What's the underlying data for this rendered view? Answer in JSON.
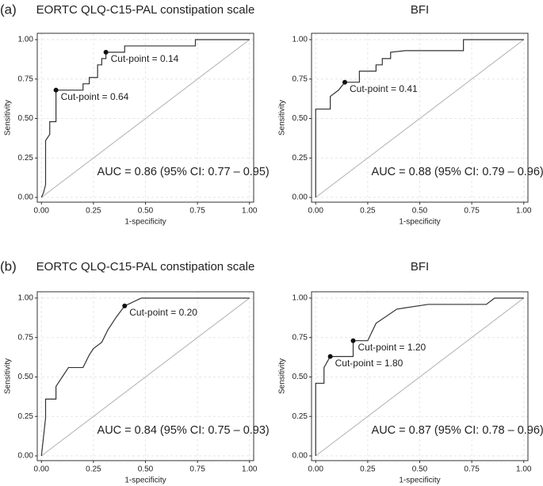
{
  "panel_labels": [
    "(a)",
    "(b)"
  ],
  "chart_data": [
    {
      "type": "line",
      "title": "EORTC QLQ-C15-PAL constipation scale",
      "x_label": "1-specificity",
      "y_label": "Sensitivity",
      "x": [
        0,
        0.01,
        0.02,
        0.02,
        0.04,
        0.04,
        0.07,
        0.07,
        0.2,
        0.2,
        0.23,
        0.23,
        0.27,
        0.27,
        0.29,
        0.29,
        0.31,
        0.31,
        0.4,
        0.4,
        0.74,
        0.74,
        1.0
      ],
      "series": [
        {
          "color": "#333333",
          "values": [
            0,
            0.03,
            0.08,
            0.36,
            0.4,
            0.48,
            0.48,
            0.68,
            0.68,
            0.72,
            0.72,
            0.76,
            0.76,
            0.84,
            0.84,
            0.88,
            0.88,
            0.92,
            0.92,
            0.96,
            0.96,
            1.0,
            1.0
          ]
        }
      ],
      "cut_points": [
        {
          "x": 0.07,
          "y": 0.68,
          "label": "Cut-point = 0.64"
        },
        {
          "x": 0.31,
          "y": 0.92,
          "label": "Cut-point = 0.14"
        }
      ],
      "annotation": "AUC = 0.86 (95% CI: 0.77 – 0.95)",
      "diagonal_color": "#b0b0b0",
      "grid": true,
      "xlim": [
        -0.02,
        1.02
      ],
      "ylim": [
        -0.03,
        1.04
      ],
      "xticks": [
        {
          "value": 0,
          "label": "0.00"
        },
        {
          "value": 0.25,
          "label": "0.25"
        },
        {
          "value": 0.5,
          "label": "0.50"
        },
        {
          "value": 0.75,
          "label": "0.75"
        },
        {
          "value": 1,
          "label": "1.00"
        }
      ],
      "yticks": [
        {
          "value": 0,
          "label": "0.00"
        },
        {
          "value": 0.25,
          "label": "0.25"
        },
        {
          "value": 0.5,
          "label": "0.50"
        },
        {
          "value": 0.75,
          "label": "0.75"
        },
        {
          "value": 1,
          "label": "1.00"
        }
      ]
    },
    {
      "type": "line",
      "title": "BFI",
      "x_label": "1-specificity",
      "y_label": "Sensitivity",
      "x": [
        0,
        0,
        0.07,
        0.07,
        0.11,
        0.14,
        0.21,
        0.21,
        0.29,
        0.29,
        0.32,
        0.32,
        0.36,
        0.36,
        0.43,
        0.71,
        0.71,
        1.0
      ],
      "series": [
        {
          "color": "#333333",
          "values": [
            0,
            0.56,
            0.56,
            0.64,
            0.68,
            0.73,
            0.73,
            0.8,
            0.8,
            0.84,
            0.84,
            0.88,
            0.88,
            0.92,
            0.93,
            0.93,
            1.0,
            1.0
          ]
        }
      ],
      "cut_points": [
        {
          "x": 0.14,
          "y": 0.73,
          "label": "Cut-point = 0.41"
        }
      ],
      "annotation": "AUC = 0.88 (95% CI: 0.79 – 0.96)",
      "diagonal_color": "#b0b0b0",
      "grid": true,
      "xlim": [
        -0.02,
        1.02
      ],
      "ylim": [
        -0.03,
        1.04
      ],
      "xticks": [
        {
          "value": 0,
          "label": "0.00"
        },
        {
          "value": 0.25,
          "label": "0.25"
        },
        {
          "value": 0.5,
          "label": "0.50"
        },
        {
          "value": 0.75,
          "label": "0.75"
        },
        {
          "value": 1,
          "label": "1.00"
        }
      ],
      "yticks": [
        {
          "value": 0,
          "label": "0.00"
        },
        {
          "value": 0.25,
          "label": "0.25"
        },
        {
          "value": 0.5,
          "label": "0.50"
        },
        {
          "value": 0.75,
          "label": "0.75"
        },
        {
          "value": 1,
          "label": "1.00"
        }
      ]
    },
    {
      "type": "line",
      "title": "EORTC QLQ-C15-PAL constipation scale",
      "x_label": "1-specificity",
      "y_label": "Sensitivity",
      "x": [
        0,
        0.01,
        0.02,
        0.02,
        0.07,
        0.07,
        0.09,
        0.11,
        0.13,
        0.2,
        0.23,
        0.25,
        0.29,
        0.32,
        0.36,
        0.4,
        0.48,
        1.0
      ],
      "series": [
        {
          "color": "#333333",
          "values": [
            0,
            0.12,
            0.24,
            0.36,
            0.36,
            0.44,
            0.48,
            0.52,
            0.56,
            0.56,
            0.64,
            0.68,
            0.72,
            0.8,
            0.88,
            0.95,
            1.0,
            1.0
          ]
        }
      ],
      "cut_points": [
        {
          "x": 0.4,
          "y": 0.95,
          "label": "Cut-point = 0.20"
        }
      ],
      "annotation": "AUC = 0.84 (95% CI: 0.75 – 0.93)",
      "diagonal_color": "#b0b0b0",
      "grid": true,
      "xlim": [
        -0.02,
        1.02
      ],
      "ylim": [
        -0.03,
        1.04
      ],
      "xticks": [
        {
          "value": 0,
          "label": "0.00"
        },
        {
          "value": 0.25,
          "label": "0.25"
        },
        {
          "value": 0.5,
          "label": "0.50"
        },
        {
          "value": 0.75,
          "label": "0.75"
        },
        {
          "value": 1,
          "label": "1.00"
        }
      ],
      "yticks": [
        {
          "value": 0,
          "label": "0.00"
        },
        {
          "value": 0.25,
          "label": "0.25"
        },
        {
          "value": 0.5,
          "label": "0.50"
        },
        {
          "value": 0.75,
          "label": "0.75"
        },
        {
          "value": 1,
          "label": "1.00"
        }
      ]
    },
    {
      "type": "line",
      "title": "BFI",
      "x_label": "1-specificity",
      "y_label": "Sensitivity",
      "x": [
        0,
        0,
        0.04,
        0.04,
        0.07,
        0.18,
        0.18,
        0.25,
        0.29,
        0.39,
        0.54,
        0.82,
        0.86,
        1.0
      ],
      "series": [
        {
          "color": "#333333",
          "values": [
            0,
            0.46,
            0.46,
            0.56,
            0.63,
            0.63,
            0.73,
            0.73,
            0.84,
            0.93,
            0.96,
            0.96,
            1.0,
            1.0
          ]
        }
      ],
      "cut_points": [
        {
          "x": 0.07,
          "y": 0.63,
          "label": "Cut-point = 1.80"
        },
        {
          "x": 0.18,
          "y": 0.73,
          "label": "Cut-point = 1.20"
        }
      ],
      "annotation": "AUC = 0.87 (95% CI: 0.78 – 0.96)",
      "diagonal_color": "#b0b0b0",
      "grid": true,
      "xlim": [
        -0.02,
        1.02
      ],
      "ylim": [
        -0.03,
        1.04
      ],
      "xticks": [
        {
          "value": 0,
          "label": "0.00"
        },
        {
          "value": 0.25,
          "label": "0.25"
        },
        {
          "value": 0.5,
          "label": "0.50"
        },
        {
          "value": 0.75,
          "label": "0.75"
        },
        {
          "value": 1,
          "label": "1.00"
        }
      ],
      "yticks": [
        {
          "value": 0,
          "label": "0.00"
        },
        {
          "value": 0.25,
          "label": "0.25"
        },
        {
          "value": 0.5,
          "label": "0.50"
        },
        {
          "value": 0.75,
          "label": "0.75"
        },
        {
          "value": 1,
          "label": "1.00"
        }
      ]
    }
  ]
}
